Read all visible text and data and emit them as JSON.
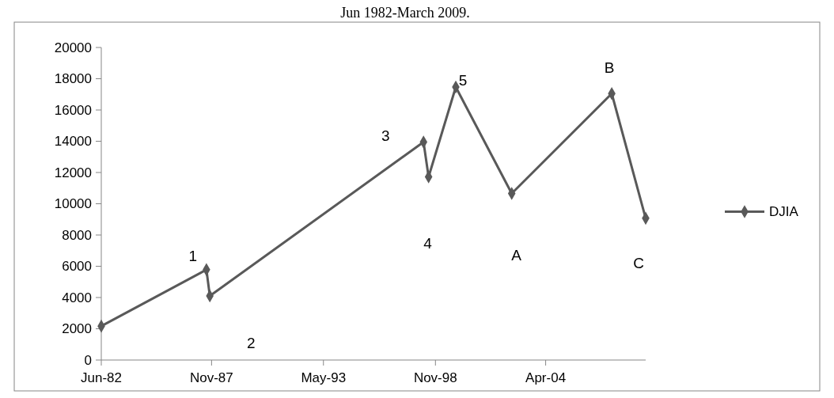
{
  "chart_data": {
    "type": "line",
    "title": "Jun 1982-March 2009.",
    "x": [
      "1982-06",
      "1987-08",
      "1987-10",
      "1998-04",
      "1998-07",
      "1999-11",
      "2002-08",
      "2007-07",
      "2009-03"
    ],
    "series": [
      {
        "name": "DJIA",
        "color": "#595959",
        "values": [
          2170,
          5780,
          4100,
          13950,
          11720,
          17470,
          10660,
          17050,
          9070
        ]
      }
    ],
    "xlim": [
      "1982-06",
      "2009-03"
    ],
    "xticks": [
      {
        "value": "1982-06",
        "label": "Jun-82"
      },
      {
        "value": "1987-11",
        "label": "Nov-87"
      },
      {
        "value": "1993-05",
        "label": "May-93"
      },
      {
        "value": "1998-11",
        "label": "Nov-98"
      },
      {
        "value": "2004-04",
        "label": "Apr-04"
      }
    ],
    "ylim": [
      0,
      20000
    ],
    "yticks": [
      0,
      2000,
      4000,
      6000,
      8000,
      10000,
      12000,
      14000,
      16000,
      18000,
      20000
    ],
    "annotations": [
      "1",
      "2",
      "3",
      "4",
      "5",
      "A",
      "B",
      "C"
    ],
    "legend": "right",
    "marker": "diamond",
    "line_style": "solid",
    "grid": false
  }
}
